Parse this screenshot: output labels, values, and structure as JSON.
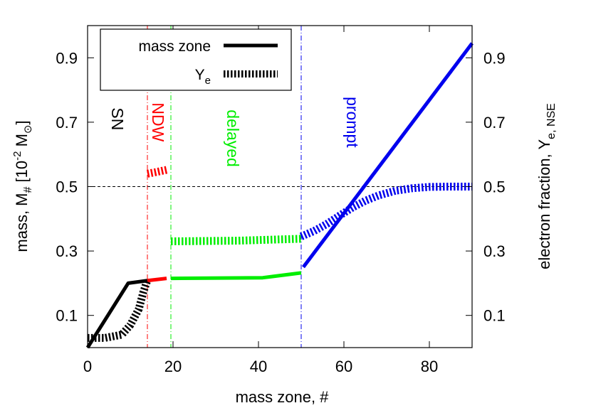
{
  "chart_data": {
    "type": "line",
    "xlabel": "mass zone, #",
    "ylabel_left": {
      "text": "mass, M",
      "sub": "#",
      "bracket_open": " [10",
      "exp": "-2",
      "unit": " M",
      "sun_sub": "⊙",
      "bracket_close": "]"
    },
    "ylabel_right": {
      "text": "electron fraction, Y",
      "sub": "e, NSE"
    },
    "xlim": [
      0,
      90
    ],
    "ylim": [
      0,
      1.0
    ],
    "xticks": [
      0,
      20,
      40,
      60,
      80
    ],
    "yticks": [
      0.1,
      0.3,
      0.5,
      0.7,
      0.9
    ],
    "yticks_right": [
      0.1,
      0.3,
      0.5,
      0.7,
      0.9
    ],
    "legend": {
      "placement": "top-left",
      "entries": [
        {
          "label": "mass zone",
          "style": "solid"
        },
        {
          "label": "Y",
          "sub": "e",
          "style": "dotted"
        }
      ]
    },
    "hline": {
      "y": 0.5,
      "color": "#000000"
    },
    "regions": [
      {
        "label": "SN",
        "color": "#000000",
        "boundary": null,
        "label_x": 7,
        "label_y": 0.71
      },
      {
        "label": "NDW",
        "color": "#ff0000",
        "boundary": 14,
        "label_x": 16.5,
        "label_y": 0.7
      },
      {
        "label": "delayed",
        "color": "#00ee00",
        "boundary": 19.5,
        "label_x": 34,
        "label_y": 0.65
      },
      {
        "label": "prompt",
        "color": "#0000ee",
        "boundary": 50,
        "label_x": 62,
        "label_y": 0.7
      }
    ],
    "series": [
      {
        "name": "mass zone",
        "region": "SN",
        "style": "solid",
        "color": "#000000",
        "x": [
          0,
          9.5,
          14
        ],
        "y": [
          0.0,
          0.2,
          0.208
        ]
      },
      {
        "name": "mass zone",
        "region": "NDW",
        "style": "solid",
        "color": "#ff0000",
        "x": [
          14,
          18.5
        ],
        "y": [
          0.208,
          0.215
        ]
      },
      {
        "name": "mass zone",
        "region": "delayed",
        "style": "solid",
        "color": "#00ee00",
        "x": [
          19.5,
          41,
          50
        ],
        "y": [
          0.215,
          0.217,
          0.232
        ]
      },
      {
        "name": "mass zone",
        "region": "prompt",
        "style": "solid",
        "color": "#0000ee",
        "x": [
          50.5,
          90
        ],
        "y": [
          0.25,
          0.945
        ]
      },
      {
        "name": "Y",
        "region": "SN",
        "style": "dotted",
        "color": "#000000",
        "x": [
          0,
          4,
          8,
          10,
          12,
          13,
          14
        ],
        "y": [
          0.03,
          0.03,
          0.04,
          0.07,
          0.12,
          0.17,
          0.21
        ]
      },
      {
        "name": "Y",
        "region": "NDW",
        "style": "dotted",
        "color": "#ff0000",
        "x": [
          14,
          16,
          18.5
        ],
        "y": [
          0.54,
          0.545,
          0.552
        ]
      },
      {
        "name": "Y",
        "region": "delayed",
        "style": "dotted",
        "color": "#00ee00",
        "x": [
          19.5,
          35,
          50
        ],
        "y": [
          0.33,
          0.332,
          0.338
        ]
      },
      {
        "name": "Y",
        "region": "prompt",
        "style": "dotted",
        "color": "#0000ee",
        "x": [
          50,
          53,
          56,
          59,
          62,
          65,
          68,
          72,
          76,
          80,
          85,
          90
        ],
        "y": [
          0.345,
          0.362,
          0.384,
          0.41,
          0.435,
          0.456,
          0.472,
          0.487,
          0.495,
          0.499,
          0.5,
          0.5
        ]
      }
    ]
  }
}
